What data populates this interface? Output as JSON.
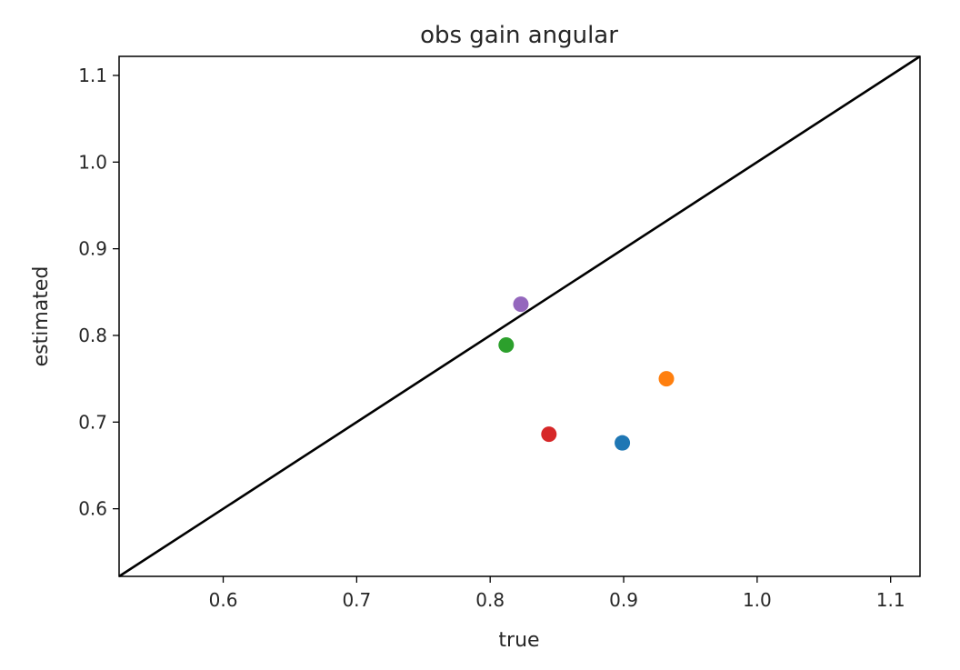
{
  "chart_data": {
    "type": "scatter",
    "title": "obs gain angular",
    "xlabel": "true",
    "ylabel": "estimated",
    "xlim": [
      0.522,
      1.122
    ],
    "ylim": [
      0.522,
      1.122
    ],
    "xticks": [
      "0.6",
      "0.7",
      "0.8",
      "0.9",
      "1.0",
      "1.1"
    ],
    "yticks": [
      "0.6",
      "0.7",
      "0.8",
      "0.9",
      "1.0",
      "1.1"
    ],
    "grid": false,
    "reference_line": {
      "type": "identity",
      "color": "#000000"
    },
    "points": [
      {
        "x": 0.899,
        "y": 0.676,
        "color": "#1f77b4"
      },
      {
        "x": 0.932,
        "y": 0.75,
        "color": "#ff7f0e"
      },
      {
        "x": 0.812,
        "y": 0.789,
        "color": "#2ca02c"
      },
      {
        "x": 0.844,
        "y": 0.686,
        "color": "#d62728"
      },
      {
        "x": 0.823,
        "y": 0.836,
        "color": "#9467bd"
      }
    ]
  }
}
